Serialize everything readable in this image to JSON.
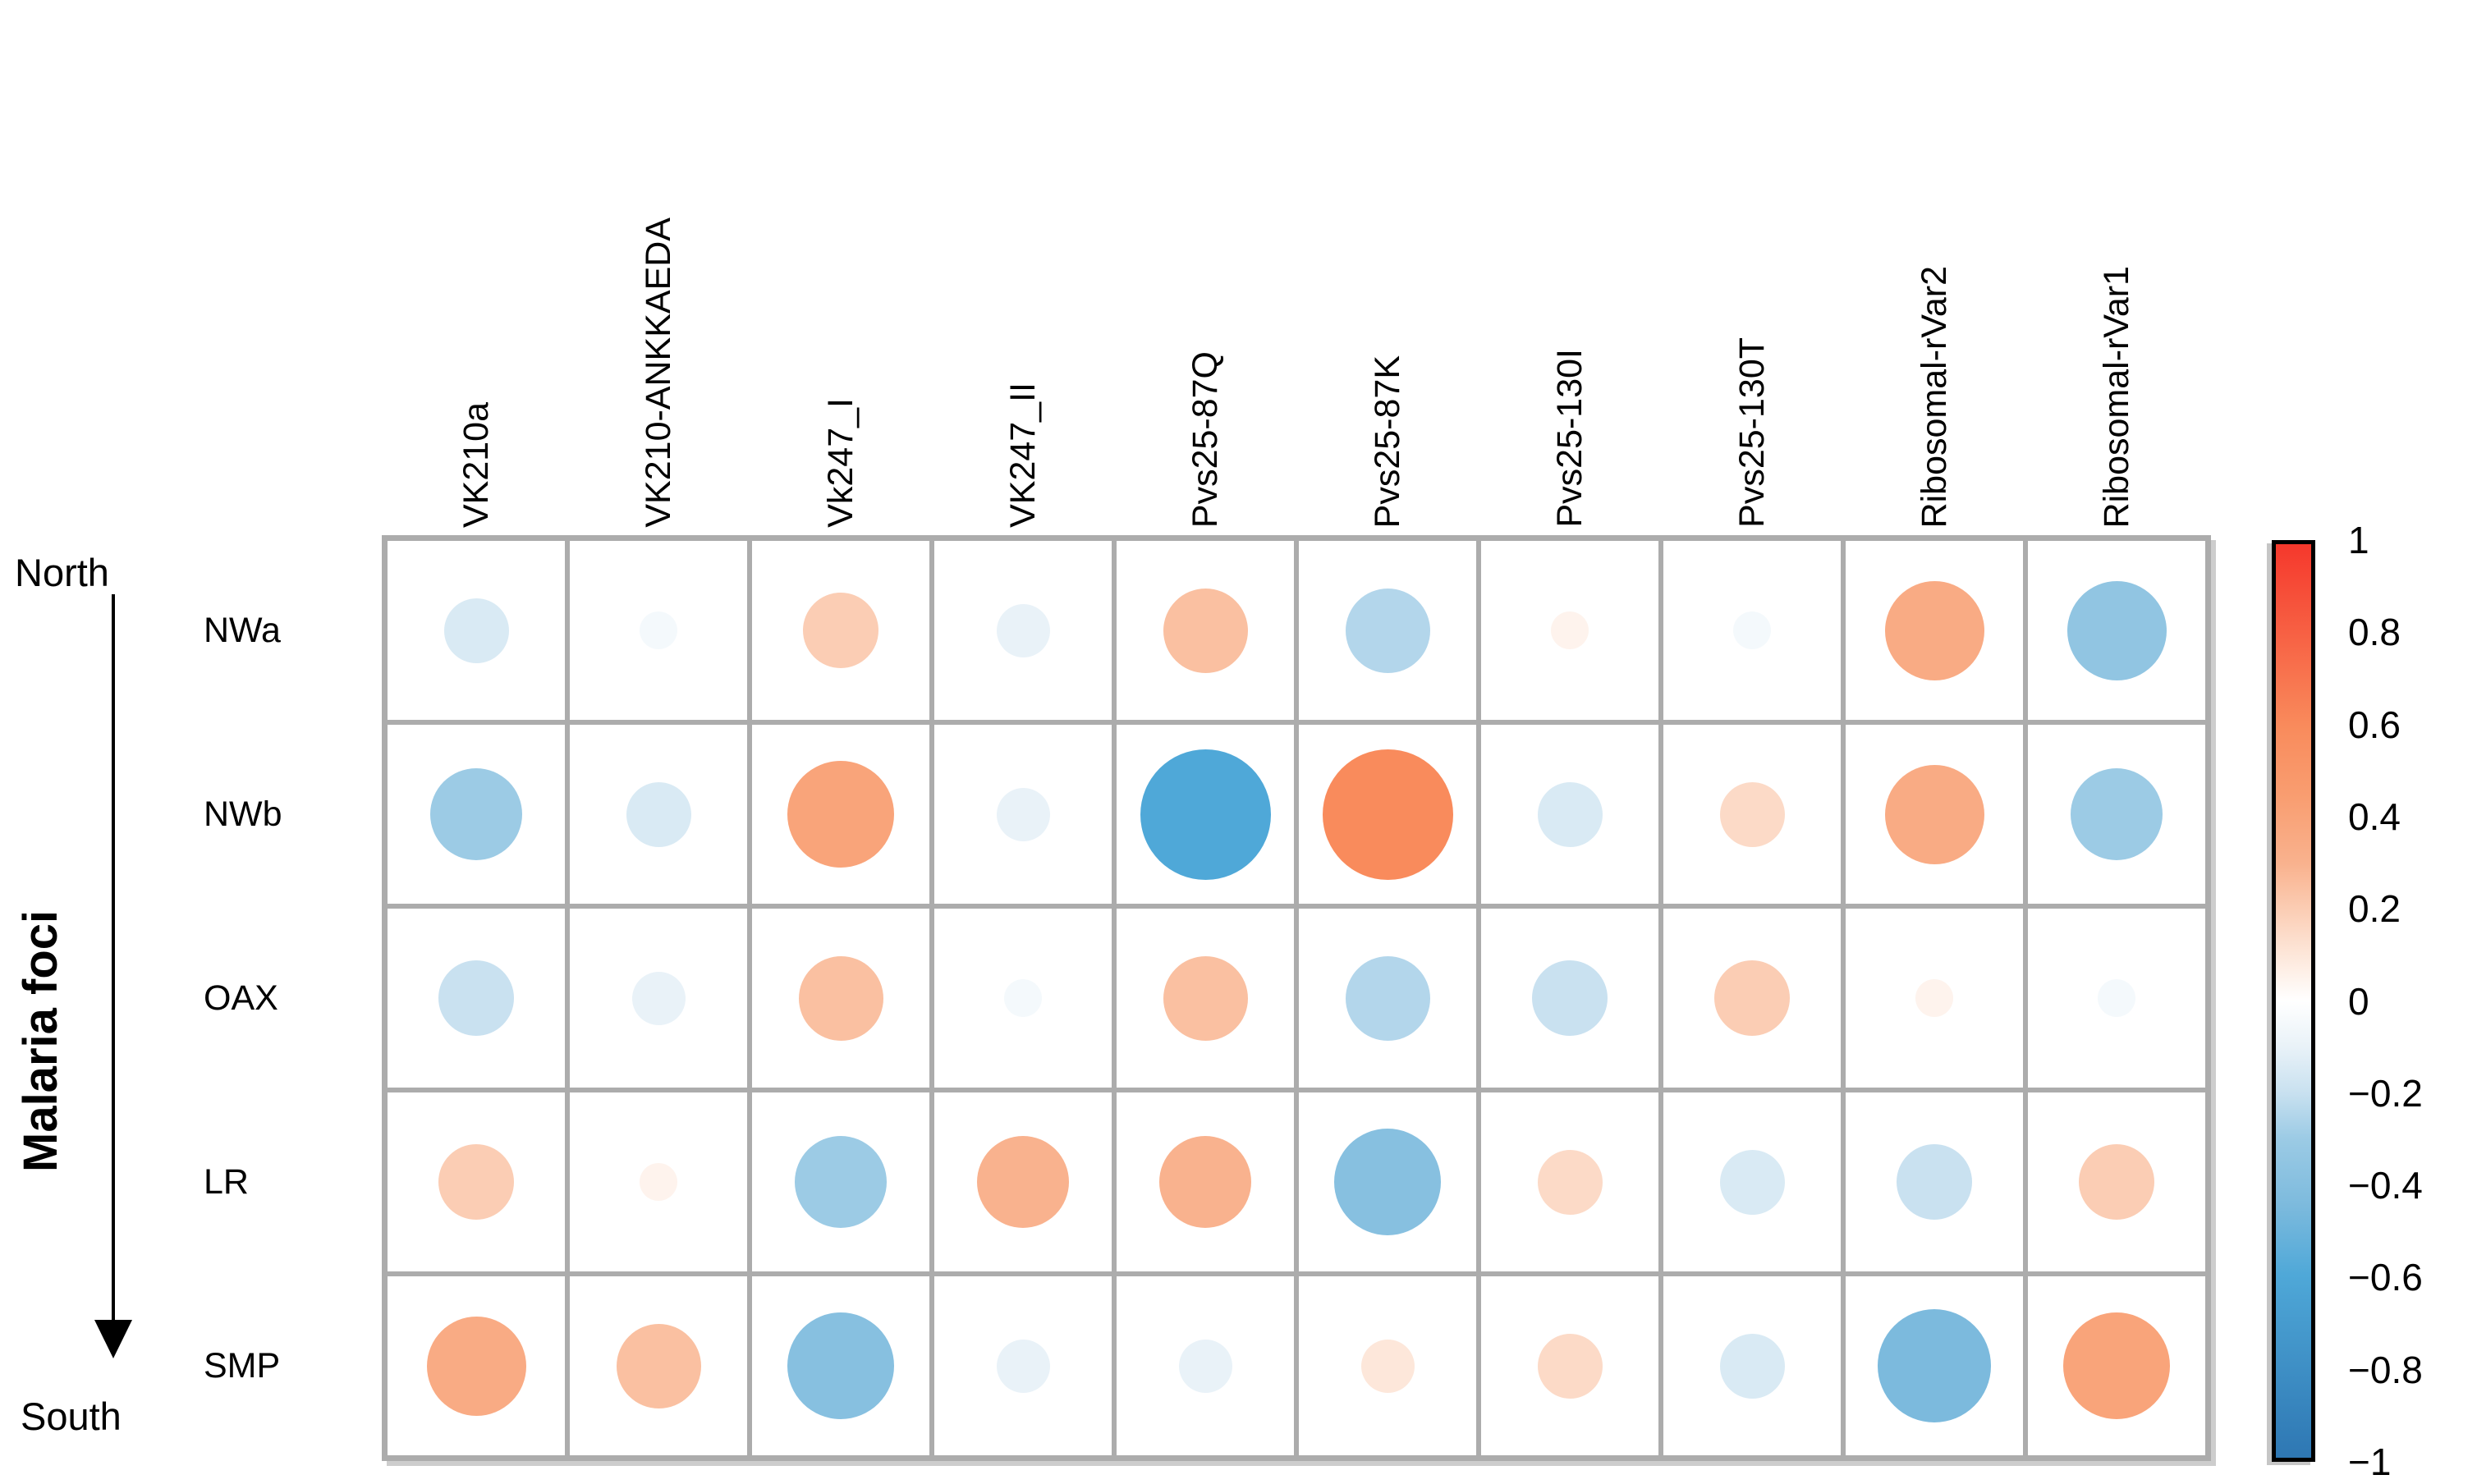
{
  "chart_data": {
    "type": "bubble-correlation-matrix",
    "title": "",
    "rows": [
      "NWa",
      "NWb",
      "OAX",
      "LR",
      "SMP"
    ],
    "columns": [
      "VK210a",
      "VK210-ANKKAEDA",
      "Vk247_I",
      "VK247_II",
      "Pvs25-87Q",
      "Pvs25-87K",
      "Pvs25-130I",
      "Pvs25-130T",
      "Ribosomal-rVar2",
      "Ribosomal-rVar1"
    ],
    "values": [
      [
        -0.15,
        -0.05,
        0.2,
        -0.1,
        0.25,
        -0.25,
        0.05,
        -0.05,
        0.35,
        -0.35
      ],
      [
        -0.3,
        -0.15,
        0.4,
        -0.1,
        -0.6,
        0.6,
        -0.15,
        0.15,
        0.35,
        -0.3
      ],
      [
        -0.2,
        -0.1,
        0.25,
        -0.05,
        0.25,
        -0.25,
        -0.2,
        0.2,
        0.05,
        -0.05
      ],
      [
        0.2,
        0.05,
        -0.3,
        0.3,
        0.3,
        -0.4,
        0.15,
        -0.15,
        -0.2,
        0.2
      ],
      [
        0.35,
        0.25,
        -0.4,
        -0.1,
        -0.1,
        0.1,
        0.15,
        -0.15,
        -0.45,
        0.4
      ]
    ],
    "value_range": [
      -1,
      1
    ],
    "size_encoding": "circle area proportional to |correlation|",
    "color_encoding": "orange/red = positive, blue = negative",
    "grid_line_color": "#ACACAC",
    "legend_position": "right",
    "annotations": {
      "north": "North",
      "south": "South",
      "axis_label": "Malaria foci"
    },
    "colorbar": {
      "ticks": [
        "1",
        "0.8",
        "0.6",
        "0.4",
        "0.2",
        "0",
        "−0.2",
        "−0.4",
        "−0.6",
        "−0.8",
        "−1"
      ],
      "stops": [
        {
          "v": -1.0,
          "c": "#2E77B3"
        },
        {
          "v": -0.6,
          "c": "#4FA8D8"
        },
        {
          "v": -0.45,
          "c": "#7CBADD"
        },
        {
          "v": -0.3,
          "c": "#9CCBE5"
        },
        {
          "v": -0.2,
          "c": "#C9E1F0"
        },
        {
          "v": -0.1,
          "c": "#E9F2F8"
        },
        {
          "v": 0.0,
          "c": "#FFFFFF"
        },
        {
          "v": 0.1,
          "c": "#FDE7DA"
        },
        {
          "v": 0.2,
          "c": "#FBCDB4"
        },
        {
          "v": 0.3,
          "c": "#F9B28E"
        },
        {
          "v": 0.45,
          "c": "#F99D70"
        },
        {
          "v": 0.6,
          "c": "#F98B5C"
        },
        {
          "v": 1.0,
          "c": "#F5382C"
        }
      ]
    }
  }
}
